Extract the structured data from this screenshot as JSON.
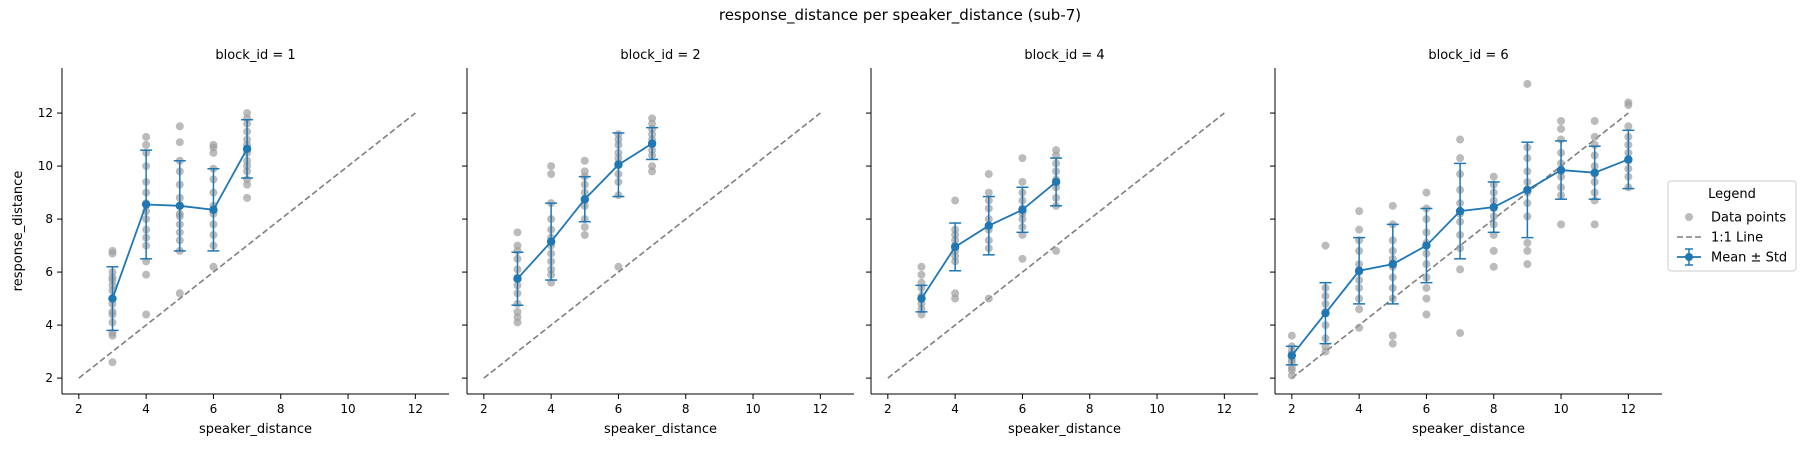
{
  "figure": {
    "suptitle": "response_distance per speaker_distance (sub-7)",
    "xlabel": "speaker_distance",
    "ylabel": "response_distance",
    "xlim": [
      1.5,
      13.0
    ],
    "ylim": [
      1.4,
      13.7
    ],
    "xticks": [
      2,
      4,
      6,
      8,
      10,
      12
    ],
    "yticks": [
      2,
      4,
      6,
      8,
      10,
      12
    ],
    "colors": {
      "points": "#9e9e9e",
      "mean": "#1f77b4",
      "identity": "#7f7f7f"
    }
  },
  "legend": {
    "title": "Legend",
    "placement": "right",
    "items": [
      {
        "kind": "scatter",
        "label": "Data points"
      },
      {
        "kind": "dashed",
        "label": "1:1 Line"
      },
      {
        "kind": "errorbar",
        "label": "Mean ± Std"
      }
    ]
  },
  "chart_data": [
    {
      "type": "scatter",
      "title": "block_id = 1",
      "identity_line": [
        2,
        12
      ],
      "points": [
        [
          3,
          6.8
        ],
        [
          3,
          6.7
        ],
        [
          3,
          6.0
        ],
        [
          3,
          5.8
        ],
        [
          3,
          5.7
        ],
        [
          3,
          5.5
        ],
        [
          3,
          5.3
        ],
        [
          3,
          5.0
        ],
        [
          3,
          4.8
        ],
        [
          3,
          4.5
        ],
        [
          3,
          4.4
        ],
        [
          3,
          4.1
        ],
        [
          3,
          3.7
        ],
        [
          3,
          3.6
        ],
        [
          3,
          2.6
        ],
        [
          4,
          11.1
        ],
        [
          4,
          10.8
        ],
        [
          4,
          10.5
        ],
        [
          4,
          10.0
        ],
        [
          4,
          9.4
        ],
        [
          4,
          9.0
        ],
        [
          4,
          8.6
        ],
        [
          4,
          8.3
        ],
        [
          4,
          8.0
        ],
        [
          4,
          7.6
        ],
        [
          4,
          7.3
        ],
        [
          4,
          7.0
        ],
        [
          4,
          6.4
        ],
        [
          4,
          5.9
        ],
        [
          4,
          4.4
        ],
        [
          5,
          11.5
        ],
        [
          5,
          10.9
        ],
        [
          5,
          10.2
        ],
        [
          5,
          9.8
        ],
        [
          5,
          9.3
        ],
        [
          5,
          8.8
        ],
        [
          5,
          8.5
        ],
        [
          5,
          8.2
        ],
        [
          5,
          8.1
        ],
        [
          5,
          7.8
        ],
        [
          5,
          7.5
        ],
        [
          5,
          7.2
        ],
        [
          5,
          6.8
        ],
        [
          5,
          5.2
        ],
        [
          6,
          10.8
        ],
        [
          6,
          10.7
        ],
        [
          6,
          10.5
        ],
        [
          6,
          9.9
        ],
        [
          6,
          9.5
        ],
        [
          6,
          9.0
        ],
        [
          6,
          8.5
        ],
        [
          6,
          8.2
        ],
        [
          6,
          7.8
        ],
        [
          6,
          7.4
        ],
        [
          6,
          7.0
        ],
        [
          6,
          6.2
        ],
        [
          7,
          12.0
        ],
        [
          7,
          11.8
        ],
        [
          7,
          11.6
        ],
        [
          7,
          11.3
        ],
        [
          7,
          11.0
        ],
        [
          7,
          10.8
        ],
        [
          7,
          10.5
        ],
        [
          7,
          10.2
        ],
        [
          7,
          10.0
        ],
        [
          7,
          9.8
        ],
        [
          7,
          9.5
        ],
        [
          7,
          9.3
        ],
        [
          7,
          8.8
        ]
      ],
      "mean": {
        "x": [
          3,
          4,
          5,
          6,
          7
        ],
        "y": [
          5.0,
          8.55,
          8.5,
          8.35,
          10.65
        ],
        "std": [
          1.2,
          2.05,
          1.7,
          1.55,
          1.1
        ]
      }
    },
    {
      "type": "scatter",
      "title": "block_id = 2",
      "identity_line": [
        2,
        12
      ],
      "points": [
        [
          3,
          7.5
        ],
        [
          3,
          7.0
        ],
        [
          3,
          6.8
        ],
        [
          3,
          6.5
        ],
        [
          3,
          6.1
        ],
        [
          3,
          5.8
        ],
        [
          3,
          5.5
        ],
        [
          3,
          5.2
        ],
        [
          3,
          4.8
        ],
        [
          3,
          4.5
        ],
        [
          3,
          4.3
        ],
        [
          3,
          4.1
        ],
        [
          4,
          10.0
        ],
        [
          4,
          9.7
        ],
        [
          4,
          8.6
        ],
        [
          4,
          8.0
        ],
        [
          4,
          7.6
        ],
        [
          4,
          7.3
        ],
        [
          4,
          7.0
        ],
        [
          4,
          6.7
        ],
        [
          4,
          6.4
        ],
        [
          4,
          6.1
        ],
        [
          4,
          5.9
        ],
        [
          4,
          5.6
        ],
        [
          5,
          10.2
        ],
        [
          5,
          9.8
        ],
        [
          5,
          9.6
        ],
        [
          5,
          9.3
        ],
        [
          5,
          9.0
        ],
        [
          5,
          8.7
        ],
        [
          5,
          8.5
        ],
        [
          5,
          8.0
        ],
        [
          5,
          7.7
        ],
        [
          5,
          7.4
        ],
        [
          6,
          11.2
        ],
        [
          6,
          11.0
        ],
        [
          6,
          10.8
        ],
        [
          6,
          10.5
        ],
        [
          6,
          10.3
        ],
        [
          6,
          10.1
        ],
        [
          6,
          9.7
        ],
        [
          6,
          9.4
        ],
        [
          6,
          8.9
        ],
        [
          6,
          6.2
        ],
        [
          7,
          11.8
        ],
        [
          7,
          11.6
        ],
        [
          7,
          11.4
        ],
        [
          7,
          11.2
        ],
        [
          7,
          11.0
        ],
        [
          7,
          10.8
        ],
        [
          7,
          10.6
        ],
        [
          7,
          10.4
        ],
        [
          7,
          10.0
        ],
        [
          7,
          9.8
        ]
      ],
      "mean": {
        "x": [
          3,
          4,
          5,
          6,
          7
        ],
        "y": [
          5.75,
          7.15,
          8.75,
          10.05,
          10.85
        ],
        "std": [
          1.0,
          1.45,
          0.85,
          1.2,
          0.6
        ]
      }
    },
    {
      "type": "scatter",
      "title": "block_id = 4",
      "identity_line": [
        2,
        12
      ],
      "points": [
        [
          3,
          6.2
        ],
        [
          3,
          5.9
        ],
        [
          3,
          5.6
        ],
        [
          3,
          5.4
        ],
        [
          3,
          5.1
        ],
        [
          3,
          4.8
        ],
        [
          3,
          4.6
        ],
        [
          3,
          4.4
        ],
        [
          4,
          8.7
        ],
        [
          4,
          7.6
        ],
        [
          4,
          7.4
        ],
        [
          4,
          7.2
        ],
        [
          4,
          7.0
        ],
        [
          4,
          6.8
        ],
        [
          4,
          6.6
        ],
        [
          4,
          6.4
        ],
        [
          4,
          5.2
        ],
        [
          4,
          5.0
        ],
        [
          5,
          9.7
        ],
        [
          5,
          9.0
        ],
        [
          5,
          8.7
        ],
        [
          5,
          8.4
        ],
        [
          5,
          8.0
        ],
        [
          5,
          7.6
        ],
        [
          5,
          7.2
        ],
        [
          5,
          6.9
        ],
        [
          5,
          5.0
        ],
        [
          6,
          10.3
        ],
        [
          6,
          9.4
        ],
        [
          6,
          9.0
        ],
        [
          6,
          8.7
        ],
        [
          6,
          8.4
        ],
        [
          6,
          8.2
        ],
        [
          6,
          8.0
        ],
        [
          6,
          7.7
        ],
        [
          6,
          7.4
        ],
        [
          6,
          6.5
        ],
        [
          7,
          10.6
        ],
        [
          7,
          10.4
        ],
        [
          7,
          10.1
        ],
        [
          7,
          9.8
        ],
        [
          7,
          9.5
        ],
        [
          7,
          9.2
        ],
        [
          7,
          8.8
        ],
        [
          7,
          8.5
        ],
        [
          7,
          6.8
        ]
      ],
      "mean": {
        "x": [
          3,
          4,
          5,
          6,
          7
        ],
        "y": [
          5.0,
          6.95,
          7.75,
          8.35,
          9.4
        ],
        "std": [
          0.5,
          0.9,
          1.1,
          0.85,
          0.9
        ]
      }
    },
    {
      "type": "scatter",
      "title": "block_id = 6",
      "identity_line": [
        2,
        12
      ],
      "points": [
        [
          2,
          3.6
        ],
        [
          2,
          3.2
        ],
        [
          2,
          3.0
        ],
        [
          2,
          2.9
        ],
        [
          2,
          2.7
        ],
        [
          2,
          2.6
        ],
        [
          2,
          2.4
        ],
        [
          2,
          2.3
        ],
        [
          2,
          2.1
        ],
        [
          3,
          7.0
        ],
        [
          3,
          5.4
        ],
        [
          3,
          5.1
        ],
        [
          3,
          4.8
        ],
        [
          3,
          4.5
        ],
        [
          3,
          4.0
        ],
        [
          3,
          3.5
        ],
        [
          3,
          3.2
        ],
        [
          3,
          3.0
        ],
        [
          4,
          8.3
        ],
        [
          4,
          7.6
        ],
        [
          4,
          7.2
        ],
        [
          4,
          6.8
        ],
        [
          4,
          6.3
        ],
        [
          4,
          6.0
        ],
        [
          4,
          5.7
        ],
        [
          4,
          5.4
        ],
        [
          4,
          5.0
        ],
        [
          4,
          4.6
        ],
        [
          4,
          3.9
        ],
        [
          5,
          8.5
        ],
        [
          5,
          7.8
        ],
        [
          5,
          7.2
        ],
        [
          5,
          6.8
        ],
        [
          5,
          6.5
        ],
        [
          5,
          6.2
        ],
        [
          5,
          5.8
        ],
        [
          5,
          5.4
        ],
        [
          5,
          5.0
        ],
        [
          5,
          3.6
        ],
        [
          5,
          3.3
        ],
        [
          6,
          9.0
        ],
        [
          6,
          8.4
        ],
        [
          6,
          8.0
        ],
        [
          6,
          7.5
        ],
        [
          6,
          7.1
        ],
        [
          6,
          6.7
        ],
        [
          6,
          6.3
        ],
        [
          6,
          5.8
        ],
        [
          6,
          5.4
        ],
        [
          6,
          5.0
        ],
        [
          6,
          4.4
        ],
        [
          7,
          11.0
        ],
        [
          7,
          10.3
        ],
        [
          7,
          9.7
        ],
        [
          7,
          9.1
        ],
        [
          7,
          8.6
        ],
        [
          7,
          8.2
        ],
        [
          7,
          7.9
        ],
        [
          7,
          7.4
        ],
        [
          7,
          6.9
        ],
        [
          7,
          6.1
        ],
        [
          7,
          3.7
        ],
        [
          8,
          9.6
        ],
        [
          8,
          9.3
        ],
        [
          8,
          9.0
        ],
        [
          8,
          8.7
        ],
        [
          8,
          8.4
        ],
        [
          8,
          8.1
        ],
        [
          8,
          7.8
        ],
        [
          8,
          7.4
        ],
        [
          8,
          6.8
        ],
        [
          8,
          6.2
        ],
        [
          9,
          13.1
        ],
        [
          9,
          10.7
        ],
        [
          9,
          10.3
        ],
        [
          9,
          9.8
        ],
        [
          9,
          9.4
        ],
        [
          9,
          9.0
        ],
        [
          9,
          8.6
        ],
        [
          9,
          8.1
        ],
        [
          9,
          7.1
        ],
        [
          9,
          6.8
        ],
        [
          9,
          6.3
        ],
        [
          10,
          11.7
        ],
        [
          10,
          11.4
        ],
        [
          10,
          11.0
        ],
        [
          10,
          10.5
        ],
        [
          10,
          10.1
        ],
        [
          10,
          9.8
        ],
        [
          10,
          9.6
        ],
        [
          10,
          9.2
        ],
        [
          10,
          8.9
        ],
        [
          10,
          7.8
        ],
        [
          11,
          11.7
        ],
        [
          11,
          11.1
        ],
        [
          11,
          10.8
        ],
        [
          11,
          10.4
        ],
        [
          11,
          10.0
        ],
        [
          11,
          9.7
        ],
        [
          11,
          9.4
        ],
        [
          11,
          9.0
        ],
        [
          11,
          8.7
        ],
        [
          11,
          7.8
        ],
        [
          12,
          12.4
        ],
        [
          12,
          12.3
        ],
        [
          12,
          11.5
        ],
        [
          12,
          11.1
        ],
        [
          12,
          10.8
        ],
        [
          12,
          10.5
        ],
        [
          12,
          10.2
        ],
        [
          12,
          9.9
        ],
        [
          12,
          9.6
        ],
        [
          12,
          9.2
        ]
      ],
      "mean": {
        "x": [
          2,
          3,
          4,
          5,
          6,
          7,
          8,
          9,
          10,
          11,
          12
        ],
        "y": [
          2.85,
          4.45,
          6.05,
          6.3,
          7.0,
          8.3,
          8.45,
          9.1,
          9.85,
          9.75,
          10.25
        ],
        "std": [
          0.35,
          1.15,
          1.25,
          1.5,
          1.4,
          1.8,
          0.95,
          1.8,
          1.1,
          1.0,
          1.1
        ]
      }
    }
  ]
}
